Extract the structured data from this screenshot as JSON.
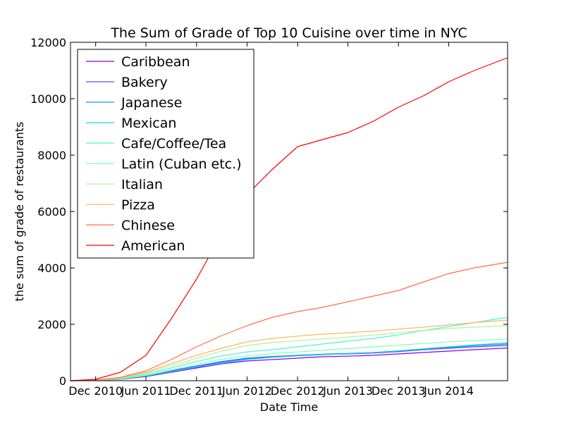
{
  "chart_data": {
    "type": "line",
    "title": "The Sum of Grade of Top 10 Cuisine over time in NYC",
    "xlabel": "Date Time",
    "ylabel": "the sum of grade of restaurants",
    "xlim": [
      "2010-09-01",
      "2014-12-31"
    ],
    "ylim": [
      0,
      12000
    ],
    "x_ticks": [
      {
        "date": "2010-12-01",
        "label": "Dec 2010"
      },
      {
        "date": "2011-06-01",
        "label": "Jun 2011"
      },
      {
        "date": "2011-12-01",
        "label": "Dec 2011"
      },
      {
        "date": "2012-06-01",
        "label": "Jun 2012"
      },
      {
        "date": "2012-12-01",
        "label": "Dec 2012"
      },
      {
        "date": "2013-06-01",
        "label": "Jun 2013"
      },
      {
        "date": "2013-12-01",
        "label": "Dec 2013"
      },
      {
        "date": "2014-06-01",
        "label": "Jun 2014"
      }
    ],
    "y_ticks": [
      0,
      2000,
      4000,
      6000,
      8000,
      10000,
      12000
    ],
    "grid": false,
    "legend_position": "top-left",
    "x": [
      "2010-09-01",
      "2010-12-01",
      "2011-03-01",
      "2011-06-01",
      "2011-09-01",
      "2011-12-01",
      "2012-03-01",
      "2012-06-01",
      "2012-09-01",
      "2012-12-01",
      "2013-03-01",
      "2013-06-01",
      "2013-09-01",
      "2013-12-01",
      "2014-03-01",
      "2014-06-01",
      "2014-09-01",
      "2014-12-31"
    ],
    "series": [
      {
        "name": "Caribbean",
        "color": "#8000ff",
        "values": [
          0,
          10,
          50,
          150,
          300,
          450,
          600,
          700,
          750,
          800,
          850,
          870,
          900,
          950,
          1000,
          1050,
          1100,
          1160
        ]
      },
      {
        "name": "Bakery",
        "color": "#4d4efc",
        "values": [
          0,
          12,
          60,
          180,
          350,
          520,
          680,
          800,
          860,
          900,
          930,
          950,
          980,
          1030,
          1100,
          1150,
          1200,
          1250
        ]
      },
      {
        "name": "Japanese",
        "color": "#1996f3",
        "values": [
          0,
          12,
          60,
          180,
          330,
          500,
          650,
          780,
          850,
          900,
          940,
          970,
          1000,
          1050,
          1120,
          1180,
          1240,
          1300
        ]
      },
      {
        "name": "Mexican",
        "color": "#1acfe3",
        "values": [
          0,
          12,
          60,
          170,
          320,
          480,
          620,
          750,
          830,
          880,
          920,
          960,
          1000,
          1060,
          1130,
          1200,
          1270,
          1340
        ]
      },
      {
        "name": "Cafe/Coffee/Tea",
        "color": "#4df3ce",
        "values": [
          0,
          15,
          80,
          230,
          450,
          680,
          880,
          1020,
          1100,
          1200,
          1300,
          1400,
          1500,
          1620,
          1780,
          1920,
          2060,
          2250
        ]
      },
      {
        "name": "Latin (Cuban etc.)",
        "color": "#80ffb4",
        "values": [
          0,
          12,
          65,
          190,
          380,
          580,
          760,
          880,
          960,
          1020,
          1080,
          1140,
          1200,
          1260,
          1320,
          1380,
          1420,
          1480
        ]
      },
      {
        "name": "Italian",
        "color": "#b2f396",
        "values": [
          0,
          15,
          90,
          270,
          520,
          800,
          1050,
          1250,
          1350,
          1420,
          1480,
          1550,
          1620,
          1700,
          1780,
          1850,
          1900,
          1950
        ]
      },
      {
        "name": "Pizza",
        "color": "#ffb360",
        "values": [
          0,
          18,
          100,
          300,
          600,
          900,
          1150,
          1380,
          1500,
          1580,
          1650,
          1700,
          1760,
          1830,
          1900,
          1980,
          2060,
          2150
        ]
      },
      {
        "name": "Chinese",
        "color": "#ff6e41",
        "values": [
          0,
          20,
          120,
          350,
          750,
          1200,
          1600,
          1950,
          2250,
          2450,
          2600,
          2800,
          3000,
          3200,
          3500,
          3800,
          4000,
          4200
        ]
      },
      {
        "name": "American",
        "color": "#ff0000",
        "values": [
          0,
          50,
          300,
          900,
          2200,
          3600,
          5200,
          6600,
          7500,
          8300,
          8550,
          8800,
          9200,
          9700,
          10100,
          10600,
          11000,
          11450
        ]
      }
    ]
  }
}
